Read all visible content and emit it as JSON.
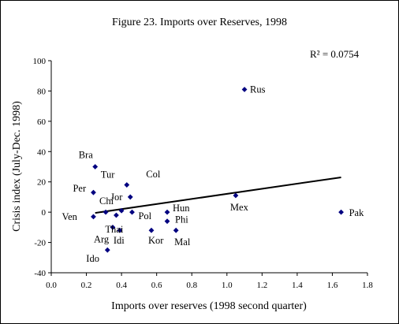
{
  "chart_data": {
    "type": "scatter",
    "title": "Figure 23. Imports over Reserves, 1998",
    "xlabel": "Imports over reserves (1998 second quarter)",
    "ylabel": "Crisis index (July-Dec. 1998)",
    "annotation": "R² = 0.0754",
    "xlim": [
      0,
      1.8
    ],
    "ylim": [
      -40,
      100
    ],
    "x_ticks": [
      "0.0",
      "0.2",
      "0.4",
      "0.6",
      "0.8",
      "1.0",
      "1.2",
      "1.4",
      "1.6",
      "1.8"
    ],
    "y_ticks": [
      "-40",
      "-20",
      "0",
      "20",
      "40",
      "60",
      "80",
      "100"
    ],
    "grid": false,
    "marker_color": "#000080",
    "trendline": {
      "x": [
        0.25,
        1.65
      ],
      "y": [
        -0.5,
        23
      ]
    },
    "points": [
      {
        "label": "Bra",
        "x": 0.25,
        "y": 30
      },
      {
        "label": "Per",
        "x": 0.24,
        "y": 13
      },
      {
        "label": "Ven",
        "x": 0.24,
        "y": -3
      },
      {
        "label": "Chi",
        "x": 0.31,
        "y": 0
      },
      {
        "label": "Tur",
        "x": 0.43,
        "y": 18
      },
      {
        "label": "Col",
        "x": 0.45,
        "y": 10
      },
      {
        "label": "Jor",
        "x": 0.4,
        "y": 1
      },
      {
        "label": "Pol",
        "x": 0.46,
        "y": 0
      },
      {
        "label": "Thai",
        "x": 0.37,
        "y": -2
      },
      {
        "label": "Arg",
        "x": 0.35,
        "y": -10
      },
      {
        "label": "Idi",
        "x": 0.39,
        "y": -12
      },
      {
        "label": "Ido",
        "x": 0.32,
        "y": -25
      },
      {
        "label": "Kor",
        "x": 0.57,
        "y": -12
      },
      {
        "label": "Hun",
        "x": 0.66,
        "y": 0
      },
      {
        "label": "Phi",
        "x": 0.66,
        "y": -6
      },
      {
        "label": "Mal",
        "x": 0.71,
        "y": -12
      },
      {
        "label": "Mex",
        "x": 1.05,
        "y": 11
      },
      {
        "label": "Rus",
        "x": 1.1,
        "y": 81
      },
      {
        "label": "Pak",
        "x": 1.65,
        "y": 0
      }
    ]
  }
}
